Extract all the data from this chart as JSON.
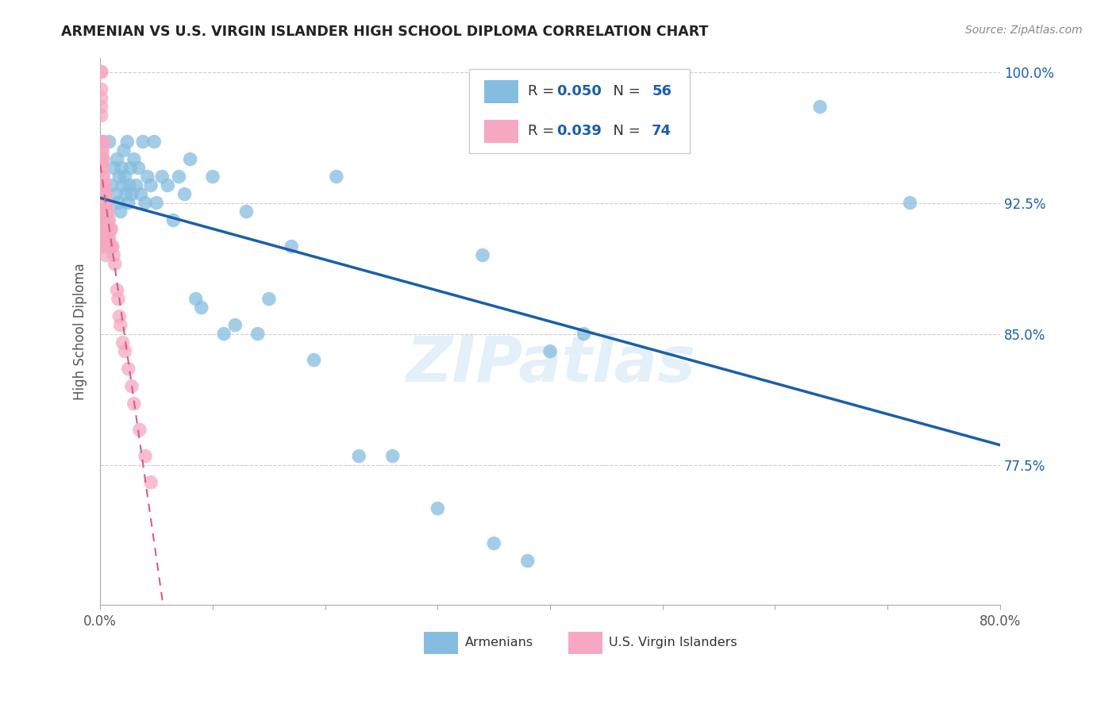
{
  "title": "ARMENIAN VS U.S. VIRGIN ISLANDER HIGH SCHOOL DIPLOMA CORRELATION CHART",
  "source": "Source: ZipAtlas.com",
  "ylabel": "High School Diploma",
  "xlim": [
    0.0,
    0.8
  ],
  "ylim": [
    0.695,
    1.008
  ],
  "ytick_positions": [
    0.775,
    0.85,
    0.925,
    1.0
  ],
  "ytick_labels": [
    "77.5%",
    "85.0%",
    "92.5%",
    "100.0%"
  ],
  "armenians_R": 0.05,
  "armenians_N": 56,
  "virgin_R": 0.039,
  "virgin_N": 74,
  "blue_color": "#85bde0",
  "pink_color": "#f5a8c0",
  "trend_blue": "#1a5fa8",
  "trend_pink": "#d06080",
  "legend_label_armenians": "Armenians",
  "legend_label_virgin": "U.S. Virgin Islanders",
  "watermark": "ZIPatlas",
  "armenians_x": [
    0.003,
    0.008,
    0.01,
    0.012,
    0.014,
    0.015,
    0.016,
    0.017,
    0.018,
    0.019,
    0.02,
    0.021,
    0.022,
    0.023,
    0.024,
    0.025,
    0.026,
    0.027,
    0.028,
    0.03,
    0.032,
    0.034,
    0.036,
    0.038,
    0.04,
    0.042,
    0.045,
    0.048,
    0.05,
    0.055,
    0.06,
    0.065,
    0.07,
    0.075,
    0.08,
    0.085,
    0.09,
    0.1,
    0.11,
    0.12,
    0.13,
    0.14,
    0.15,
    0.17,
    0.19,
    0.21,
    0.23,
    0.26,
    0.3,
    0.34,
    0.35,
    0.38,
    0.4,
    0.43,
    0.64,
    0.72
  ],
  "armenians_y": [
    0.91,
    0.96,
    0.935,
    0.945,
    0.93,
    0.95,
    0.925,
    0.94,
    0.92,
    0.945,
    0.935,
    0.955,
    0.94,
    0.93,
    0.96,
    0.925,
    0.935,
    0.945,
    0.93,
    0.95,
    0.935,
    0.945,
    0.93,
    0.96,
    0.925,
    0.94,
    0.935,
    0.96,
    0.925,
    0.94,
    0.935,
    0.915,
    0.94,
    0.93,
    0.95,
    0.87,
    0.865,
    0.94,
    0.85,
    0.855,
    0.92,
    0.85,
    0.87,
    0.9,
    0.835,
    0.94,
    0.78,
    0.78,
    0.75,
    0.895,
    0.73,
    0.72,
    0.84,
    0.85,
    0.98,
    0.925
  ],
  "virgin_x": [
    0.001,
    0.001,
    0.001,
    0.001,
    0.001,
    0.001,
    0.001,
    0.001,
    0.001,
    0.001,
    0.002,
    0.002,
    0.002,
    0.002,
    0.002,
    0.002,
    0.002,
    0.002,
    0.002,
    0.002,
    0.002,
    0.002,
    0.002,
    0.003,
    0.003,
    0.003,
    0.003,
    0.003,
    0.003,
    0.003,
    0.003,
    0.003,
    0.003,
    0.003,
    0.004,
    0.004,
    0.004,
    0.004,
    0.004,
    0.004,
    0.005,
    0.005,
    0.005,
    0.005,
    0.005,
    0.005,
    0.006,
    0.006,
    0.006,
    0.006,
    0.007,
    0.007,
    0.007,
    0.008,
    0.008,
    0.009,
    0.009,
    0.01,
    0.01,
    0.011,
    0.012,
    0.013,
    0.015,
    0.016,
    0.017,
    0.018,
    0.02,
    0.022,
    0.025,
    0.028,
    0.03,
    0.035,
    0.04,
    0.045
  ],
  "virgin_y": [
    1.0,
    1.0,
    0.99,
    0.985,
    0.98,
    0.975,
    0.96,
    0.955,
    0.95,
    0.945,
    0.96,
    0.955,
    0.95,
    0.945,
    0.94,
    0.935,
    0.93,
    0.925,
    0.92,
    0.915,
    0.91,
    0.905,
    0.9,
    0.96,
    0.95,
    0.94,
    0.935,
    0.93,
    0.925,
    0.92,
    0.915,
    0.91,
    0.905,
    0.9,
    0.935,
    0.93,
    0.925,
    0.92,
    0.91,
    0.905,
    0.93,
    0.925,
    0.92,
    0.91,
    0.905,
    0.895,
    0.925,
    0.92,
    0.91,
    0.9,
    0.92,
    0.915,
    0.905,
    0.915,
    0.905,
    0.91,
    0.9,
    0.91,
    0.9,
    0.9,
    0.895,
    0.89,
    0.875,
    0.87,
    0.86,
    0.855,
    0.845,
    0.84,
    0.83,
    0.82,
    0.81,
    0.795,
    0.78,
    0.765
  ]
}
